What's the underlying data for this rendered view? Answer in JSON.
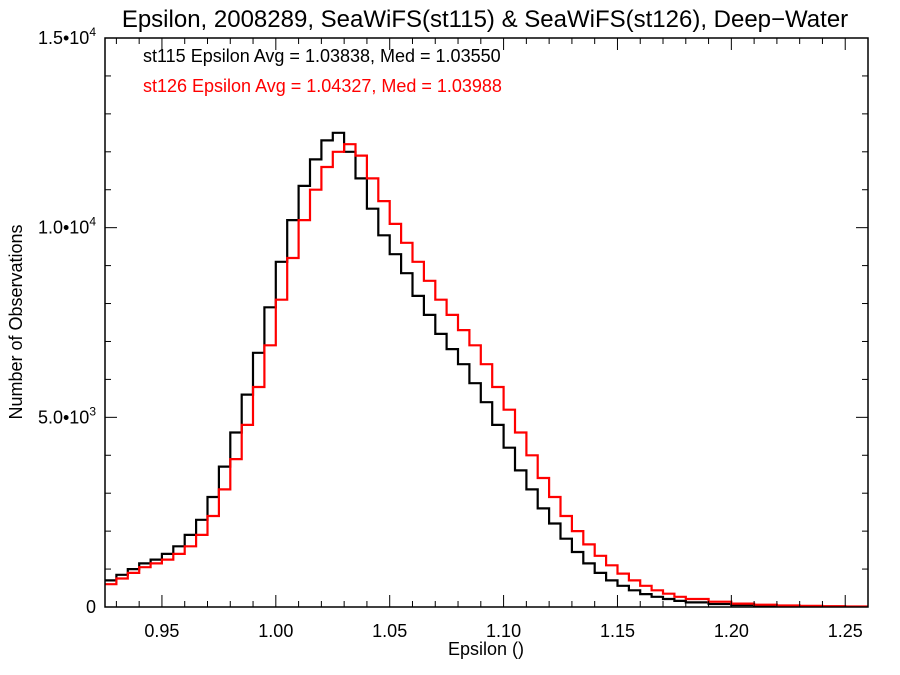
{
  "chart_data": {
    "type": "line",
    "title": "Epsilon, 2008289, SeaWiFS(st115) & SeaWiFS(st126), Deep−Water",
    "xlabel": "Epsilon ()",
    "ylabel": "Number of Observations",
    "xlim": [
      0.925,
      1.26
    ],
    "ylim": [
      0,
      15000
    ],
    "xticks": [
      {
        "value": 0.95,
        "label": "0.95"
      },
      {
        "value": 1.0,
        "label": "1.00"
      },
      {
        "value": 1.05,
        "label": "1.05"
      },
      {
        "value": 1.1,
        "label": "1.10"
      },
      {
        "value": 1.15,
        "label": "1.15"
      },
      {
        "value": 1.2,
        "label": "1.20"
      },
      {
        "value": 1.25,
        "label": "1.25"
      }
    ],
    "yticks": [
      {
        "value": 0,
        "mantissa": "0",
        "exponent": ""
      },
      {
        "value": 5000,
        "mantissa": "5.0•10",
        "exponent": "3"
      },
      {
        "value": 10000,
        "mantissa": "1.0•10",
        "exponent": "4"
      },
      {
        "value": 15000,
        "mantissa": "1.5•10",
        "exponent": "4"
      }
    ],
    "grid": false,
    "legend_position": "top-left",
    "annotations": [
      {
        "text": "st115 Epsilon Avg = 1.03838, Med = 1.03550",
        "color": "#000000"
      },
      {
        "text": "st126 Epsilon Avg = 1.04327, Med = 1.03988",
        "color": "#ff0000"
      }
    ],
    "series": [
      {
        "color": "#000000",
        "x": [
          0.925,
          0.93,
          0.935,
          0.94,
          0.945,
          0.95,
          0.955,
          0.96,
          0.965,
          0.97,
          0.975,
          0.98,
          0.985,
          0.99,
          0.995,
          1.0,
          1.005,
          1.01,
          1.015,
          1.02,
          1.025,
          1.027,
          1.03,
          1.035,
          1.04,
          1.045,
          1.05,
          1.055,
          1.06,
          1.065,
          1.07,
          1.075,
          1.08,
          1.085,
          1.09,
          1.095,
          1.1,
          1.105,
          1.11,
          1.115,
          1.12,
          1.125,
          1.13,
          1.135,
          1.14,
          1.145,
          1.15,
          1.155,
          1.16,
          1.165,
          1.17,
          1.175,
          1.18,
          1.19,
          1.2,
          1.21,
          1.22,
          1.23,
          1.24,
          1.25,
          1.26
        ],
        "y": [
          700,
          850,
          1000,
          1150,
          1250,
          1400,
          1600,
          1900,
          2300,
          2900,
          3700,
          4600,
          5600,
          6700,
          7900,
          9100,
          10200,
          11100,
          11800,
          12300,
          12500,
          12500,
          12000,
          11300,
          10500,
          9800,
          9300,
          8800,
          8200,
          7700,
          7200,
          6800,
          6400,
          5900,
          5400,
          4800,
          4200,
          3600,
          3100,
          2600,
          2200,
          1800,
          1450,
          1150,
          900,
          700,
          560,
          440,
          340,
          270,
          210,
          160,
          120,
          80,
          50,
          35,
          25,
          18,
          12,
          8,
          5
        ]
      },
      {
        "color": "#ff0000",
        "x": [
          0.925,
          0.93,
          0.935,
          0.94,
          0.945,
          0.95,
          0.955,
          0.96,
          0.965,
          0.97,
          0.975,
          0.98,
          0.985,
          0.99,
          0.995,
          1.0,
          1.005,
          1.01,
          1.015,
          1.02,
          1.025,
          1.03,
          1.035,
          1.04,
          1.045,
          1.05,
          1.055,
          1.06,
          1.065,
          1.07,
          1.075,
          1.08,
          1.085,
          1.09,
          1.095,
          1.1,
          1.105,
          1.11,
          1.115,
          1.12,
          1.125,
          1.13,
          1.135,
          1.14,
          1.145,
          1.15,
          1.155,
          1.16,
          1.165,
          1.17,
          1.175,
          1.18,
          1.19,
          1.2,
          1.21,
          1.22,
          1.23,
          1.24,
          1.25,
          1.26
        ],
        "y": [
          600,
          750,
          900,
          1050,
          1150,
          1250,
          1400,
          1600,
          1900,
          2400,
          3100,
          3900,
          4800,
          5800,
          6900,
          8100,
          9200,
          10200,
          11000,
          11600,
          12000,
          12200,
          11900,
          11300,
          10700,
          10100,
          9600,
          9100,
          8600,
          8100,
          7700,
          7300,
          6900,
          6400,
          5800,
          5200,
          4600,
          4000,
          3400,
          2900,
          2400,
          2000,
          1650,
          1350,
          1100,
          880,
          700,
          560,
          440,
          350,
          270,
          210,
          140,
          90,
          60,
          40,
          28,
          20,
          14,
          10
        ]
      }
    ]
  }
}
